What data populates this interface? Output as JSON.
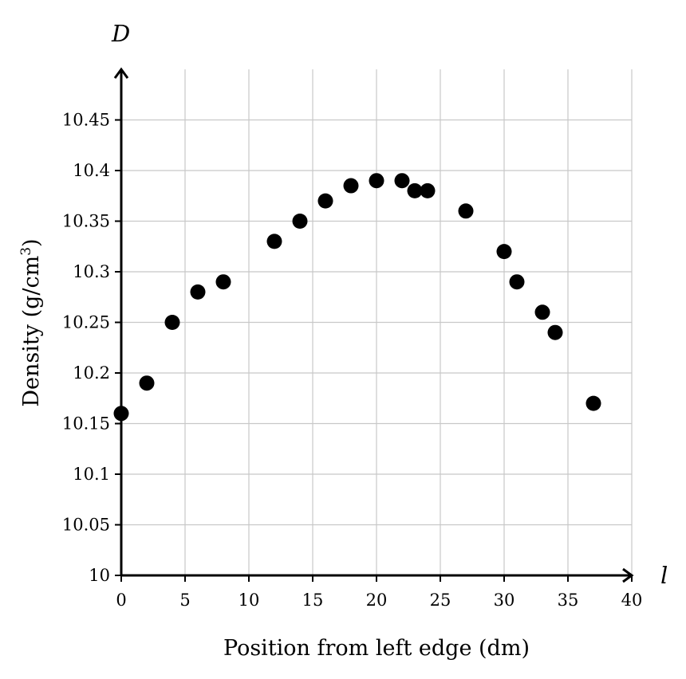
{
  "chart_data": {
    "type": "scatter",
    "x_variable": "l",
    "y_variable": "D",
    "xlabel": "Position from left edge (dm)",
    "ylabel": "Density (g/cm",
    "ylabel_superscript": "3",
    "ylabel_suffix": ")",
    "xlim": [
      0,
      40
    ],
    "ylim": [
      10,
      10.5
    ],
    "x_ticks": [
      0,
      5,
      10,
      15,
      20,
      25,
      30,
      35,
      40
    ],
    "x_tick_labels": [
      "0",
      "5",
      "10",
      "15",
      "20",
      "25",
      "30",
      "35",
      "40"
    ],
    "y_ticks": [
      10,
      10.05,
      10.1,
      10.15,
      10.2,
      10.25,
      10.3,
      10.35,
      10.4,
      10.45
    ],
    "y_tick_labels": [
      "10",
      "10.05",
      "10.1",
      "10.15",
      "10.2",
      "10.25",
      "10.3",
      "10.35",
      "10.4",
      "10.45"
    ],
    "grid": true,
    "points": [
      {
        "x": 0,
        "y": 10.16
      },
      {
        "x": 2,
        "y": 10.19
      },
      {
        "x": 4,
        "y": 10.25
      },
      {
        "x": 6,
        "y": 10.28
      },
      {
        "x": 8,
        "y": 10.29
      },
      {
        "x": 12,
        "y": 10.33
      },
      {
        "x": 14,
        "y": 10.35
      },
      {
        "x": 16,
        "y": 10.37
      },
      {
        "x": 18,
        "y": 10.385
      },
      {
        "x": 20,
        "y": 10.39
      },
      {
        "x": 22,
        "y": 10.39
      },
      {
        "x": 23,
        "y": 10.38
      },
      {
        "x": 24,
        "y": 10.38
      },
      {
        "x": 27,
        "y": 10.36
      },
      {
        "x": 30,
        "y": 10.32
      },
      {
        "x": 31,
        "y": 10.29
      },
      {
        "x": 33,
        "y": 10.26
      },
      {
        "x": 34,
        "y": 10.24
      },
      {
        "x": 37,
        "y": 10.17
      }
    ]
  }
}
